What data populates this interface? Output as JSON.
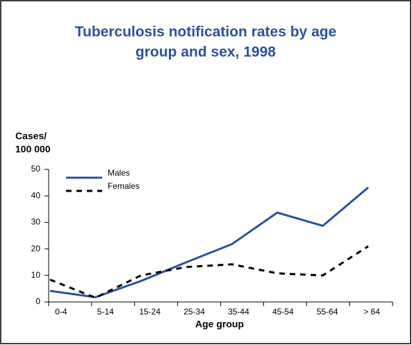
{
  "chart_data": {
    "type": "line",
    "title": [
      "Tuberculosis notification rates by age",
      "group and sex, 1998"
    ],
    "y_label": [
      "Cases/",
      "100 000"
    ],
    "x_label": "Age group",
    "categories": [
      "0-4",
      "5-14",
      "15-24",
      "25-34",
      "35-44",
      "45-54",
      "55-64",
      "> 64"
    ],
    "series": [
      {
        "name": "Males",
        "color": "#2a52a0",
        "dash": "solid",
        "values": [
          4.2,
          1.8,
          7.9,
          15,
          21.8,
          33.7,
          28.7,
          43.2
        ]
      },
      {
        "name": "Females",
        "color": "#000000",
        "dash": "dashed",
        "values": [
          8.4,
          1.6,
          10,
          13.2,
          14.2,
          10.8,
          10,
          21
        ]
      }
    ],
    "ylim": [
      0,
      50
    ],
    "yticks": [
      0,
      10,
      20,
      30,
      40,
      50
    ]
  }
}
